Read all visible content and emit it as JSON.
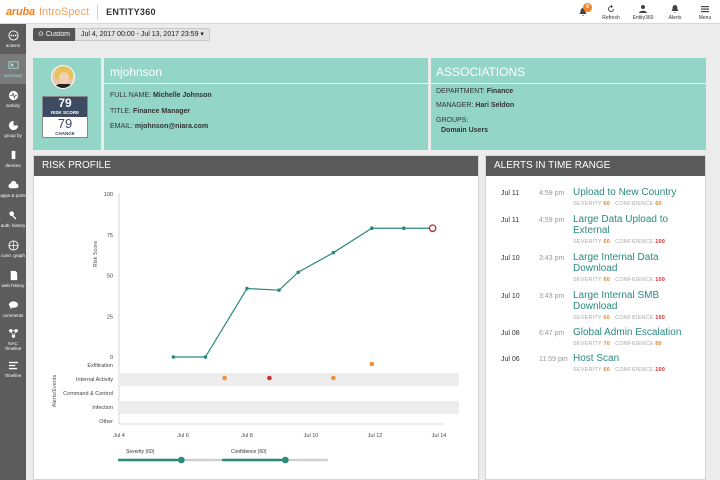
{
  "header": {
    "brand": "aruba",
    "product": "IntroSpect",
    "page_name": "ENTITY360",
    "notification_count": "8",
    "actions": [
      {
        "label": "Refresh",
        "icon": "refresh-icon"
      },
      {
        "label": "Entity360",
        "icon": "entity360-icon"
      },
      {
        "label": "Alerts",
        "icon": "alerts-icon"
      },
      {
        "label": "Menu",
        "icon": "menu-icon"
      }
    ]
  },
  "sidebar": {
    "items": [
      {
        "label": "actions",
        "icon": "actions-icon"
      },
      {
        "label": "summary",
        "icon": "summary-icon",
        "active": true
      },
      {
        "label": "activity",
        "icon": "activity-icon"
      },
      {
        "label": "group by",
        "icon": "group-by-icon"
      },
      {
        "label": "devices",
        "icon": "devices-icon"
      },
      {
        "label": "apps & ports",
        "icon": "apps-ports-icon"
      },
      {
        "label": "auth. history",
        "icon": "auth-history-icon"
      },
      {
        "label": "conn. graph",
        "icon": "conn-graph-icon"
      },
      {
        "label": "web history",
        "icon": "web-history-icon"
      },
      {
        "label": "comments",
        "icon": "comments-icon"
      },
      {
        "label": "NAC Timeline",
        "icon": "nac-timeline-icon"
      },
      {
        "label": "Timeline",
        "icon": "timeline-icon"
      }
    ]
  },
  "date_range": {
    "mode": "Custom",
    "range": "Jul 4, 2017 00:00 - Jul 13, 2017 23:59"
  },
  "profile": {
    "risk_score": "79",
    "risk_score_label": "RISK SCORE",
    "change": "79",
    "change_label": "CHANGE",
    "username": "mjohnson",
    "full_name_label": "FULL NAME:",
    "full_name": "Michelle Johnson",
    "title_label": "TITLE:",
    "title": "Finance Manager",
    "email_label": "EMAIL:",
    "email": "mjohnson@niara.com"
  },
  "associations": {
    "heading": "ASSOCIATIONS",
    "department_label": "DEPARTMENT:",
    "department": "Finance",
    "manager_label": "MANAGER:",
    "manager": "Hari Seldon",
    "groups_label": "GROUPS:",
    "groups": "Domain Users"
  },
  "risk_profile": {
    "heading": "RISK PROFILE",
    "sliders": [
      {
        "label": "Severity (60)",
        "level": 0.6
      },
      {
        "label": "Confidence (60)",
        "level": 0.6
      }
    ]
  },
  "chart_data": {
    "type": "line",
    "ylabel": "Risk Score",
    "ylim": [
      0,
      100
    ],
    "yticks": [
      "100",
      "75",
      "50",
      "25",
      "0"
    ],
    "xticks": [
      "Jul 4",
      "Jul 6",
      "Jul 8",
      "Jul 10",
      "Jul 12",
      "Jul 14"
    ],
    "xlim_days": [
      4,
      14
    ],
    "series": [
      {
        "x": [
          5.7,
          6.7,
          8.0,
          9.0,
          9.6,
          10.7,
          11.9,
          12.9,
          13.8
        ],
        "values": [
          0,
          0,
          42,
          41,
          52,
          64,
          79,
          79,
          79
        ]
      }
    ],
    "events_label": "Alerts/Events",
    "event_categories": [
      "Exfiltration",
      "Internal Activity",
      "Command & Control",
      "Infection",
      "Other"
    ],
    "events": [
      {
        "category": "Exfiltration",
        "x": 11.9,
        "color": "#f0923a"
      },
      {
        "category": "Internal Activity",
        "x": 7.3,
        "color": "#f0923a"
      },
      {
        "category": "Internal Activity",
        "x": 8.7,
        "color": "#d32f2f"
      },
      {
        "category": "Internal Activity",
        "x": 10.7,
        "color": "#f0923a"
      }
    ],
    "line_color": "#2a8a7e",
    "last_point_color": "#c62828"
  },
  "alerts": {
    "heading": "ALERTS IN TIME RANGE",
    "severity_label": "SEVERITY",
    "confidence_label": "CONFIDENCE",
    "items": [
      {
        "date": "Jul 11",
        "time": "4:59 pm",
        "title": "Upload to New Country",
        "severity": "60",
        "confidence": "60"
      },
      {
        "date": "Jul 11",
        "time": "4:59 pm",
        "title": "Large Data Upload to External",
        "severity": "60",
        "confidence": "100"
      },
      {
        "date": "Jul 10",
        "time": "3:43 pm",
        "title": "Large Internal Data Download",
        "severity": "60",
        "confidence": "100"
      },
      {
        "date": "Jul 10",
        "time": "3:43 pm",
        "title": "Large Internal SMB Download",
        "severity": "60",
        "confidence": "100"
      },
      {
        "date": "Jul 08",
        "time": "6:47 pm",
        "title": "Global Admin Escalation",
        "severity": "70",
        "confidence": "80"
      },
      {
        "date": "Jul 06",
        "time": "11:59 pm",
        "title": "Host Scan",
        "severity": "60",
        "confidence": "100"
      }
    ]
  }
}
